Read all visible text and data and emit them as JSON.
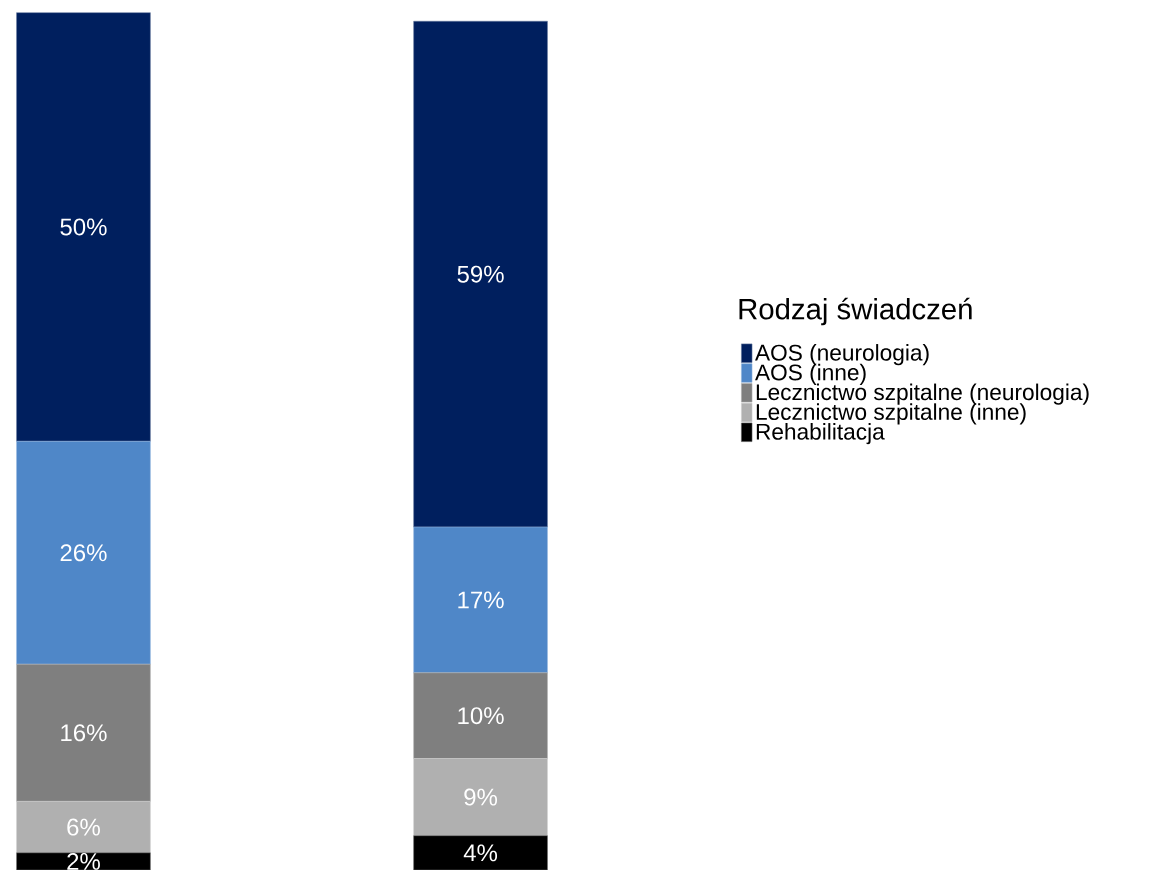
{
  "chart_data": {
    "type": "bar",
    "stacked": true,
    "categories": [
      null,
      null
    ],
    "legend": "right",
    "legend_title": "Rodzaj świadczeń",
    "series": [
      {
        "name": "Rehabilitacja",
        "color": "#000000",
        "values": [
          2,
          4
        ],
        "value_labels": [
          "2%",
          "4%"
        ]
      },
      {
        "name": "Lecznictwo szpitalne (inne)",
        "color": "#b0b0b0",
        "values": [
          6,
          9
        ],
        "value_labels": [
          "6%",
          "9%"
        ]
      },
      {
        "name": "Lecznictwo szpitalne (neurologia)",
        "color": "#7f7f7f",
        "values": [
          16,
          10
        ],
        "value_labels": [
          "16%",
          "10%"
        ]
      },
      {
        "name": "AOS (inne)",
        "color": "#4f87c8",
        "values": [
          26,
          17
        ],
        "value_labels": [
          "26%",
          "17%"
        ]
      },
      {
        "name": "AOS (neurologia)",
        "color": "#001f5e",
        "values": [
          50,
          59
        ],
        "value_labels": [
          "50%",
          "59%"
        ]
      }
    ]
  }
}
